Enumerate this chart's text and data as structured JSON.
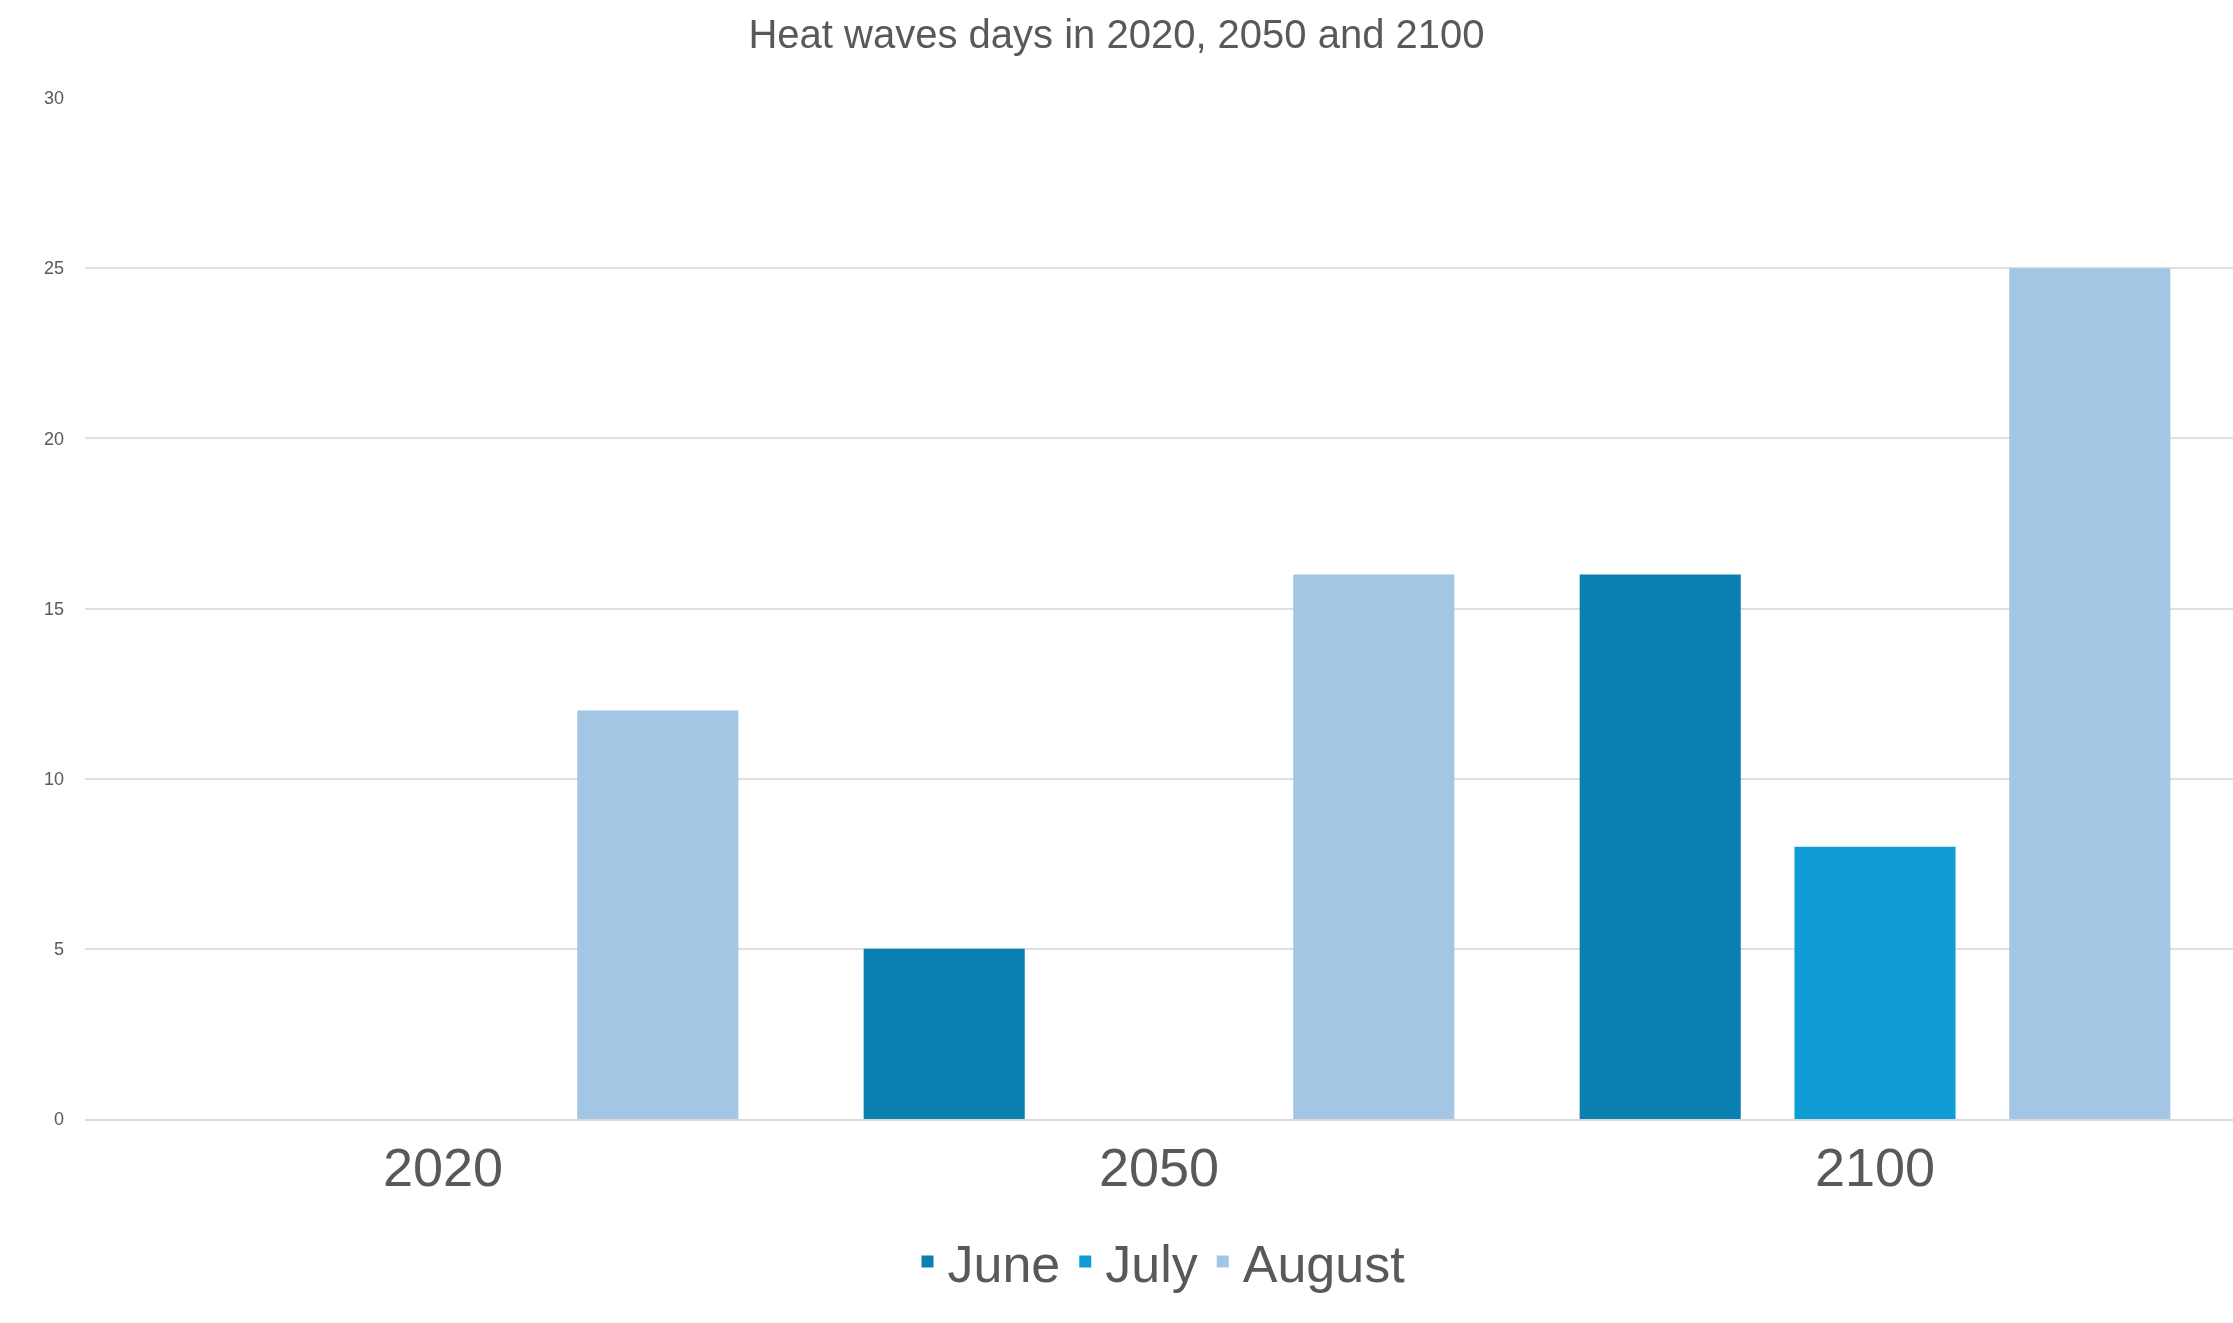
{
  "chart_data": {
    "type": "bar",
    "title": "Heat waves days in 2020, 2050 and 2100",
    "categories": [
      "2020",
      "2050",
      "2100"
    ],
    "series": [
      {
        "name": "June",
        "color": "#0a80b0",
        "values": [
          0,
          5,
          16
        ]
      },
      {
        "name": "July",
        "color": "#0f9cd4",
        "values": [
          0,
          0,
          8
        ]
      },
      {
        "name": "August",
        "color": "#a3c6e5",
        "values": [
          12,
          16,
          25
        ]
      }
    ],
    "ylim": [
      0,
      30
    ],
    "yticks": [
      0,
      5,
      10,
      15,
      20,
      25,
      30
    ],
    "grid": "y",
    "legend": "bottom"
  }
}
